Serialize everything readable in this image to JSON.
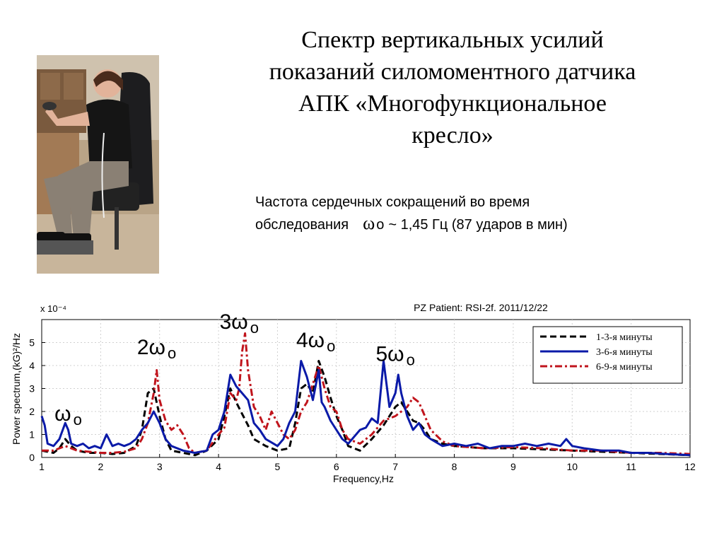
{
  "slide": {
    "title_lines": [
      "Спектр вертикальных усилий",
      "показаний силомоментного датчика",
      "АПК «Многофункциональное",
      "кресло»"
    ],
    "heart_rate": {
      "line1": "Частота сердечных сокращений во время",
      "line2_prefix": "обследования",
      "omega": "ω",
      "subscript": "o",
      "line2_suffix": "~ 1,45 Гц (87 ударов в мин)"
    }
  },
  "chart_data": {
    "type": "line",
    "title": "PZ Patient: RSI-2f. 2011/12/22",
    "xlabel": "Frequency,Hz",
    "ylabel": "Power spectrum,(kG)²/Hz",
    "y_multiplier": "x 10⁻⁴",
    "xlim": [
      1,
      12
    ],
    "ylim": [
      0,
      6
    ],
    "xticks": [
      1,
      2,
      3,
      4,
      5,
      6,
      7,
      8,
      9,
      10,
      11,
      12
    ],
    "yticks": [
      0,
      1,
      2,
      3,
      4,
      5
    ],
    "legend_position": "top-right",
    "series": [
      {
        "name": "1-3-я минуты",
        "color": "#000000",
        "style": "dashed",
        "points": [
          [
            1.0,
            0.3
          ],
          [
            1.2,
            0.2
          ],
          [
            1.3,
            0.4
          ],
          [
            1.4,
            0.8
          ],
          [
            1.5,
            0.5
          ],
          [
            1.6,
            0.3
          ],
          [
            1.8,
            0.2
          ],
          [
            2.0,
            0.2
          ],
          [
            2.2,
            0.15
          ],
          [
            2.4,
            0.2
          ],
          [
            2.6,
            0.5
          ],
          [
            2.7,
            1.2
          ],
          [
            2.8,
            2.8
          ],
          [
            2.9,
            3.0
          ],
          [
            3.0,
            1.8
          ],
          [
            3.1,
            0.8
          ],
          [
            3.2,
            0.3
          ],
          [
            3.4,
            0.2
          ],
          [
            3.6,
            0.1
          ],
          [
            3.8,
            0.3
          ],
          [
            4.0,
            0.8
          ],
          [
            4.1,
            1.8
          ],
          [
            4.2,
            3.0
          ],
          [
            4.3,
            2.4
          ],
          [
            4.4,
            1.9
          ],
          [
            4.5,
            1.4
          ],
          [
            4.6,
            0.8
          ],
          [
            4.8,
            0.5
          ],
          [
            5.0,
            0.3
          ],
          [
            5.2,
            0.4
          ],
          [
            5.3,
            1.5
          ],
          [
            5.4,
            3.0
          ],
          [
            5.5,
            3.2
          ],
          [
            5.6,
            2.8
          ],
          [
            5.7,
            4.2
          ],
          [
            5.8,
            3.5
          ],
          [
            5.9,
            2.6
          ],
          [
            6.0,
            1.8
          ],
          [
            6.1,
            1.2
          ],
          [
            6.2,
            0.5
          ],
          [
            6.4,
            0.3
          ],
          [
            6.6,
            0.8
          ],
          [
            6.8,
            1.4
          ],
          [
            7.0,
            2.2
          ],
          [
            7.1,
            2.4
          ],
          [
            7.2,
            2.0
          ],
          [
            7.3,
            1.6
          ],
          [
            7.4,
            1.5
          ],
          [
            7.5,
            1.2
          ],
          [
            7.6,
            0.8
          ],
          [
            7.8,
            0.6
          ],
          [
            8.0,
            0.5
          ],
          [
            8.5,
            0.4
          ],
          [
            9.0,
            0.4
          ],
          [
            9.5,
            0.35
          ],
          [
            10.0,
            0.3
          ],
          [
            10.5,
            0.25
          ],
          [
            11.0,
            0.2
          ],
          [
            11.5,
            0.15
          ],
          [
            12.0,
            0.1
          ]
        ]
      },
      {
        "name": "3-6-я минуты",
        "color": "#0a1aa8",
        "style": "solid",
        "points": [
          [
            1.0,
            1.8
          ],
          [
            1.05,
            1.4
          ],
          [
            1.1,
            0.6
          ],
          [
            1.2,
            0.5
          ],
          [
            1.3,
            0.8
          ],
          [
            1.4,
            1.5
          ],
          [
            1.45,
            1.2
          ],
          [
            1.5,
            0.6
          ],
          [
            1.6,
            0.5
          ],
          [
            1.7,
            0.6
          ],
          [
            1.8,
            0.4
          ],
          [
            1.9,
            0.5
          ],
          [
            2.0,
            0.4
          ],
          [
            2.1,
            1.0
          ],
          [
            2.2,
            0.5
          ],
          [
            2.3,
            0.6
          ],
          [
            2.4,
            0.5
          ],
          [
            2.5,
            0.6
          ],
          [
            2.6,
            0.8
          ],
          [
            2.7,
            1.2
          ],
          [
            2.8,
            1.5
          ],
          [
            2.9,
            2.0
          ],
          [
            3.0,
            1.5
          ],
          [
            3.1,
            0.8
          ],
          [
            3.2,
            0.5
          ],
          [
            3.4,
            0.3
          ],
          [
            3.6,
            0.2
          ],
          [
            3.8,
            0.3
          ],
          [
            3.9,
            1.0
          ],
          [
            4.0,
            1.2
          ],
          [
            4.1,
            2.0
          ],
          [
            4.2,
            3.6
          ],
          [
            4.3,
            3.1
          ],
          [
            4.4,
            2.8
          ],
          [
            4.5,
            2.5
          ],
          [
            4.6,
            1.5
          ],
          [
            4.7,
            1.2
          ],
          [
            4.8,
            0.8
          ],
          [
            5.0,
            0.5
          ],
          [
            5.1,
            0.8
          ],
          [
            5.2,
            1.5
          ],
          [
            5.3,
            2.0
          ],
          [
            5.4,
            4.2
          ],
          [
            5.5,
            3.5
          ],
          [
            5.6,
            2.5
          ],
          [
            5.7,
            3.8
          ],
          [
            5.75,
            2.4
          ],
          [
            5.8,
            2.2
          ],
          [
            5.9,
            1.6
          ],
          [
            6.0,
            1.2
          ],
          [
            6.1,
            0.8
          ],
          [
            6.2,
            0.6
          ],
          [
            6.3,
            0.9
          ],
          [
            6.4,
            1.2
          ],
          [
            6.5,
            1.3
          ],
          [
            6.6,
            1.7
          ],
          [
            6.7,
            1.5
          ],
          [
            6.8,
            4.2
          ],
          [
            6.9,
            2.2
          ],
          [
            7.0,
            2.8
          ],
          [
            7.05,
            3.6
          ],
          [
            7.1,
            2.8
          ],
          [
            7.2,
            1.8
          ],
          [
            7.3,
            1.2
          ],
          [
            7.4,
            1.5
          ],
          [
            7.5,
            1.0
          ],
          [
            7.6,
            0.8
          ],
          [
            7.8,
            0.5
          ],
          [
            8.0,
            0.6
          ],
          [
            8.2,
            0.5
          ],
          [
            8.4,
            0.6
          ],
          [
            8.6,
            0.4
          ],
          [
            8.8,
            0.5
          ],
          [
            9.0,
            0.5
          ],
          [
            9.2,
            0.6
          ],
          [
            9.4,
            0.5
          ],
          [
            9.6,
            0.6
          ],
          [
            9.8,
            0.5
          ],
          [
            9.9,
            0.8
          ],
          [
            10.0,
            0.5
          ],
          [
            10.2,
            0.4
          ],
          [
            10.5,
            0.3
          ],
          [
            10.8,
            0.3
          ],
          [
            11.0,
            0.2
          ],
          [
            11.3,
            0.2
          ],
          [
            11.6,
            0.15
          ],
          [
            12.0,
            0.1
          ]
        ]
      },
      {
        "name": "6-9-я минуты",
        "color": "#c0141c",
        "style": "dashdot",
        "points": [
          [
            1.0,
            0.3
          ],
          [
            1.2,
            0.3
          ],
          [
            1.4,
            0.5
          ],
          [
            1.6,
            0.3
          ],
          [
            1.8,
            0.25
          ],
          [
            2.0,
            0.2
          ],
          [
            2.2,
            0.2
          ],
          [
            2.4,
            0.25
          ],
          [
            2.6,
            0.4
          ],
          [
            2.7,
            0.8
          ],
          [
            2.8,
            1.5
          ],
          [
            2.9,
            2.8
          ],
          [
            2.95,
            3.8
          ],
          [
            3.0,
            2.5
          ],
          [
            3.1,
            1.6
          ],
          [
            3.2,
            1.2
          ],
          [
            3.3,
            1.4
          ],
          [
            3.4,
            1.0
          ],
          [
            3.5,
            0.4
          ],
          [
            3.6,
            0.2
          ],
          [
            3.8,
            0.3
          ],
          [
            4.0,
            1.0
          ],
          [
            4.1,
            1.3
          ],
          [
            4.2,
            2.8
          ],
          [
            4.3,
            2.5
          ],
          [
            4.35,
            3.0
          ],
          [
            4.4,
            4.6
          ],
          [
            4.45,
            5.4
          ],
          [
            4.5,
            3.8
          ],
          [
            4.6,
            2.2
          ],
          [
            4.7,
            1.8
          ],
          [
            4.8,
            1.2
          ],
          [
            4.9,
            2.0
          ],
          [
            5.0,
            1.5
          ],
          [
            5.1,
            1.0
          ],
          [
            5.2,
            0.8
          ],
          [
            5.3,
            1.2
          ],
          [
            5.4,
            2.0
          ],
          [
            5.5,
            2.4
          ],
          [
            5.6,
            3.2
          ],
          [
            5.7,
            4.0
          ],
          [
            5.8,
            3.0
          ],
          [
            5.9,
            2.2
          ],
          [
            6.0,
            2.0
          ],
          [
            6.1,
            1.2
          ],
          [
            6.2,
            0.8
          ],
          [
            6.4,
            0.6
          ],
          [
            6.6,
            1.0
          ],
          [
            6.8,
            1.6
          ],
          [
            7.0,
            1.8
          ],
          [
            7.2,
            2.2
          ],
          [
            7.3,
            2.6
          ],
          [
            7.4,
            2.4
          ],
          [
            7.5,
            1.8
          ],
          [
            7.6,
            1.2
          ],
          [
            7.8,
            0.7
          ],
          [
            8.0,
            0.5
          ],
          [
            8.5,
            0.4
          ],
          [
            9.0,
            0.45
          ],
          [
            9.5,
            0.4
          ],
          [
            10.0,
            0.3
          ],
          [
            10.5,
            0.3
          ],
          [
            11.0,
            0.2
          ],
          [
            11.5,
            0.2
          ],
          [
            12.0,
            0.15
          ]
        ]
      }
    ],
    "annotations": [
      {
        "label": "ω",
        "sub": "o",
        "x": 1.45,
        "y": 1.6
      },
      {
        "label": "2ω",
        "sub": "o",
        "x": 2.95,
        "y": 4.5
      },
      {
        "label": "3ω",
        "sub": "o",
        "x": 4.35,
        "y": 5.6
      },
      {
        "label": "4ω",
        "sub": "o",
        "x": 5.65,
        "y": 4.8
      },
      {
        "label": "5ω",
        "sub": "o",
        "x": 7.0,
        "y": 4.2
      }
    ]
  }
}
